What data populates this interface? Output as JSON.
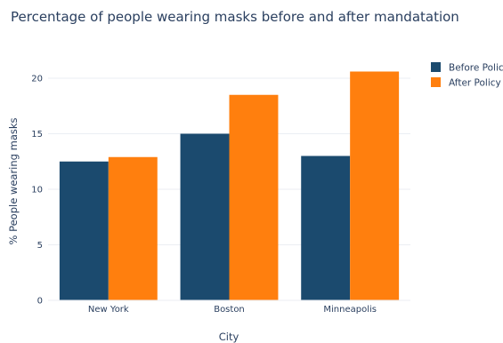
{
  "chart_data": {
    "type": "bar",
    "title": "Percentage of people wearing masks before and after mandatation",
    "xlabel": "City",
    "ylabel": "% People wearing masks",
    "categories": [
      "New York",
      "Boston",
      "Minneapolis"
    ],
    "series": [
      {
        "name": "Before Policy",
        "color": "#1b4a6e",
        "values": [
          12.5,
          15.0,
          13.0
        ]
      },
      {
        "name": "After Policy",
        "color": "#ff7f0e",
        "values": [
          12.9,
          18.5,
          20.6
        ]
      }
    ],
    "ylim": [
      0,
      22
    ],
    "yticks": [
      0,
      5,
      10,
      15,
      20
    ],
    "grid": true,
    "legend_position": "top-right"
  }
}
